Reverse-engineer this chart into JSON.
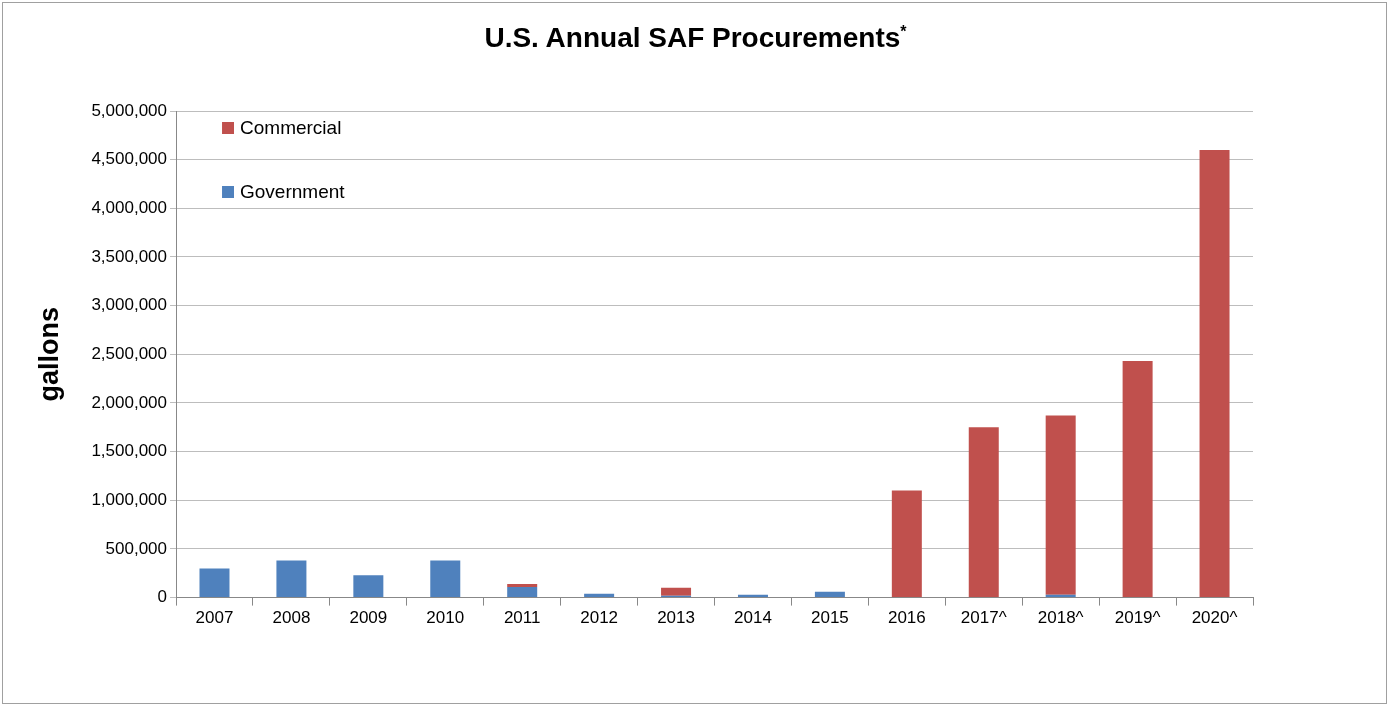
{
  "chart_data": {
    "type": "bar",
    "title": "U.S. Annual SAF Procurements$^{*}$",
    "ylabel": "gallons",
    "categories": [
      "2007",
      "2008",
      "2009",
      "2010",
      "2011",
      "2012",
      "2013",
      "2014",
      "2015",
      "2016",
      "2017^",
      "2018^",
      "2019^",
      "2020^"
    ],
    "stacked": true,
    "series": [
      {
        "name": "Government",
        "color": "#4f81bd",
        "values": [
          300000,
          380000,
          230000,
          380000,
          110000,
          40000,
          20000,
          30000,
          60000,
          0,
          0,
          30000,
          0,
          0
        ]
      },
      {
        "name": "Commercial",
        "color": "#c0504d",
        "values": [
          0,
          0,
          0,
          0,
          30000,
          0,
          80000,
          0,
          0,
          1100000,
          1750000,
          1840000,
          2430000,
          4600000
        ]
      }
    ],
    "ylim": [
      0,
      5000000
    ],
    "yticks": [
      {
        "value": 0,
        "label": "0"
      },
      {
        "value": 500000,
        "label": "500,000"
      },
      {
        "value": 1000000,
        "label": "1,000,000"
      },
      {
        "value": 1500000,
        "label": "1,500,000"
      },
      {
        "value": 2000000,
        "label": "2,000,000"
      },
      {
        "value": 2500000,
        "label": "2,500,000"
      },
      {
        "value": 3000000,
        "label": "3,000,000"
      },
      {
        "value": 3500000,
        "label": "3,500,000"
      },
      {
        "value": 4000000,
        "label": "4,000,000"
      },
      {
        "value": 4500000,
        "label": "4,500,000"
      },
      {
        "value": 5000000,
        "label": "5,000,000"
      }
    ],
    "grid": "y",
    "legend": "top left"
  }
}
